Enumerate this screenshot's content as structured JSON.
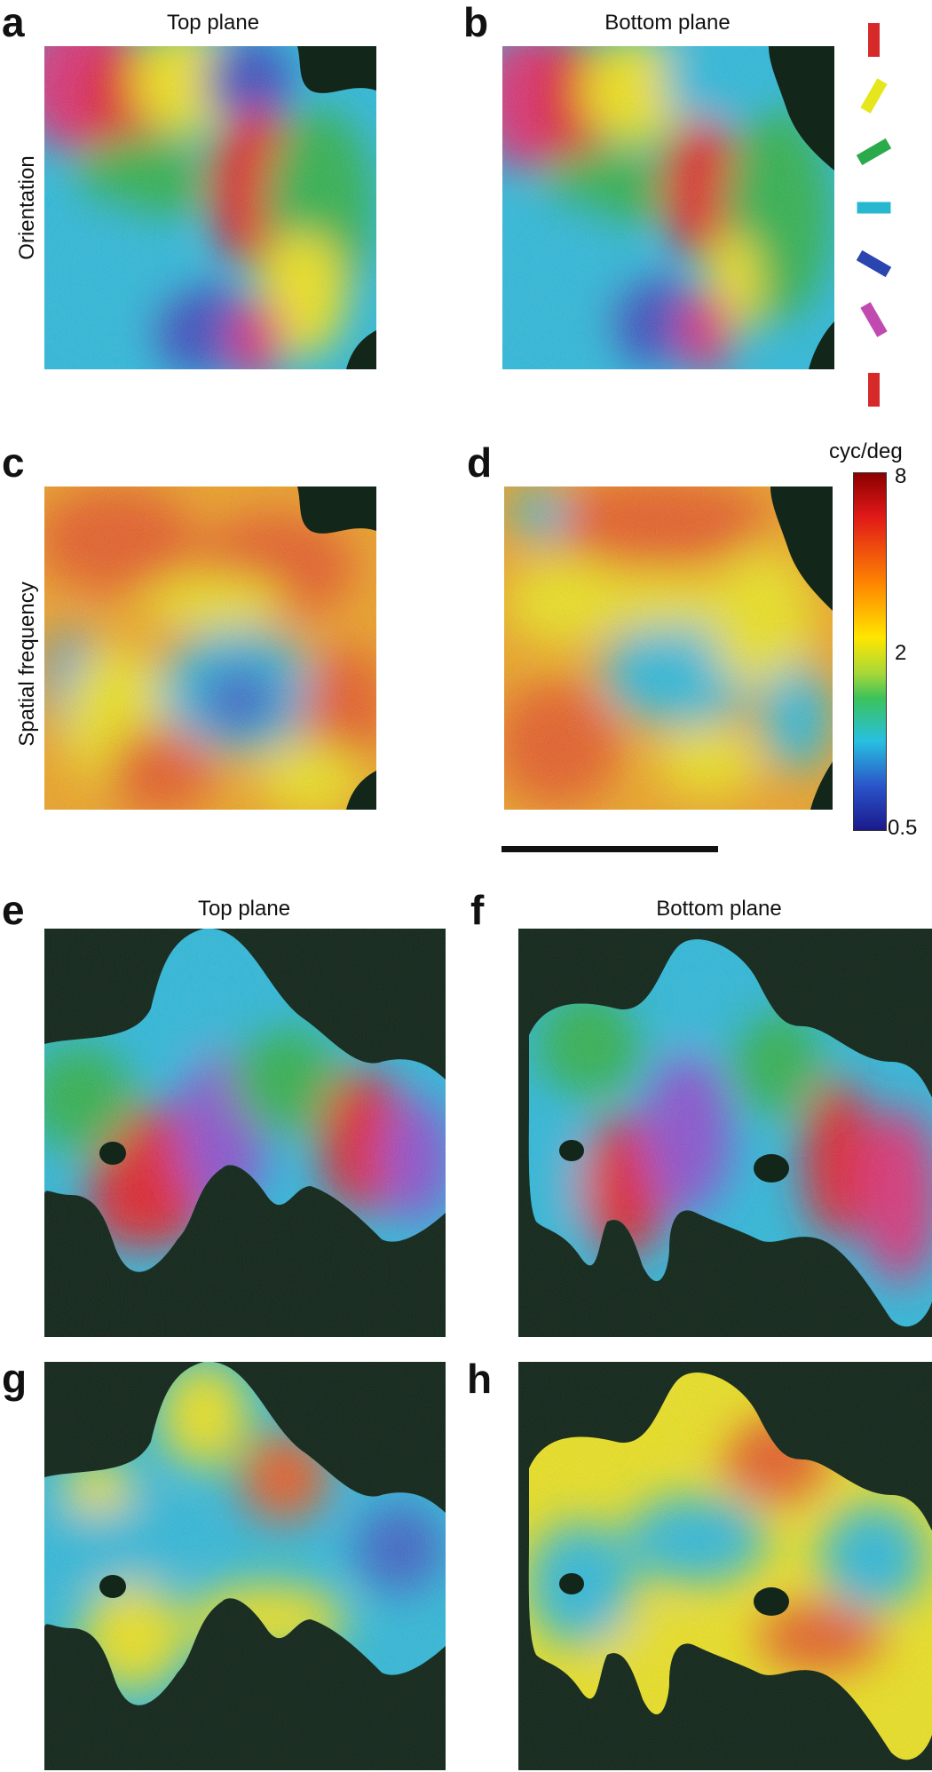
{
  "panel_letters": [
    "a",
    "b",
    "c",
    "d",
    "e",
    "f",
    "g",
    "h"
  ],
  "column_titles": {
    "top": "Top plane",
    "bottom": "Bottom plane"
  },
  "row_labels": {
    "orientation": "Orientation",
    "spatial_frequency": "Spatial frequency"
  },
  "colorbar": {
    "unit": "cyc/deg",
    "ticks": [
      "8",
      "2",
      "0.5"
    ],
    "colors": [
      "#8b0000",
      "#e01818",
      "#ff8c00",
      "#ffe600",
      "#3cc25a",
      "#27c0e0",
      "#2a52c8",
      "#1a1a8c"
    ]
  },
  "orientation_legend": {
    "angles_deg": [
      0,
      30,
      60,
      90,
      120,
      150,
      180
    ],
    "colors": [
      "#d62a2a",
      "#e6e61e",
      "#2aaa4a",
      "#27b8d0",
      "#2a44b0",
      "#c04ab0",
      "#d62a2a"
    ]
  },
  "map_colors": {
    "red": "#e0222a",
    "yellow": "#eee21a",
    "green": "#2fb04e",
    "cyan": "#2ab8dc",
    "blue": "#3a4ec0",
    "magenta": "#d8307a",
    "orange": "#f09020",
    "mask": "#12261a"
  }
}
